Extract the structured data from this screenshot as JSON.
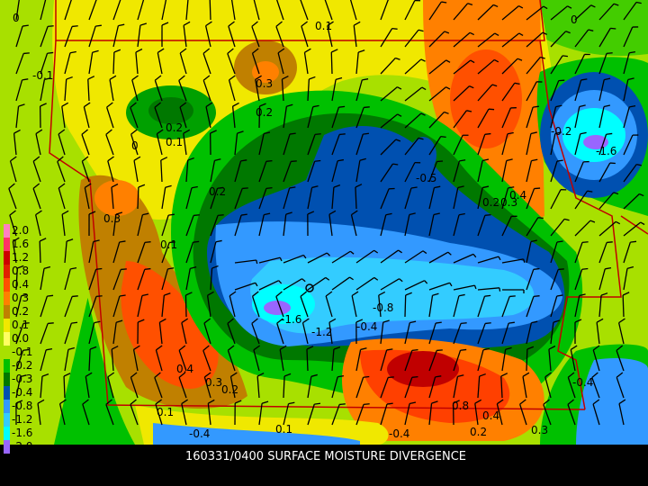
{
  "title": "160331/0400 SURFACE MOISTURE DIVERGENCE",
  "legend": {
    "labels": [
      "2.0",
      "1.6",
      "1.2",
      "0.8",
      "0.4",
      "0.3",
      "0.2",
      "0.1",
      "0.0",
      "-0.1",
      "-0.2",
      "-0.3",
      "-0.4",
      "-0.8",
      "-1.2",
      "-1.6",
      "-2.0"
    ]
  },
  "contour_labels": [
    "0",
    "0.1",
    "0",
    "-0.1",
    "0.3",
    "0.2",
    "0.2",
    "0.1",
    "0",
    "0.2",
    "0.3",
    "0.1",
    "-0.5",
    "0.2",
    "0.3",
    "0.4",
    "-0.2",
    "-1.6",
    "-1.6",
    "-1.2",
    "-0.8",
    "-0.4",
    "0.4",
    "0.3",
    "0.2",
    "0.8",
    "0.4",
    "-0.4",
    "-0.4",
    "-0.4",
    "0.1",
    "0.1",
    "0.2",
    "0.3"
  ]
}
